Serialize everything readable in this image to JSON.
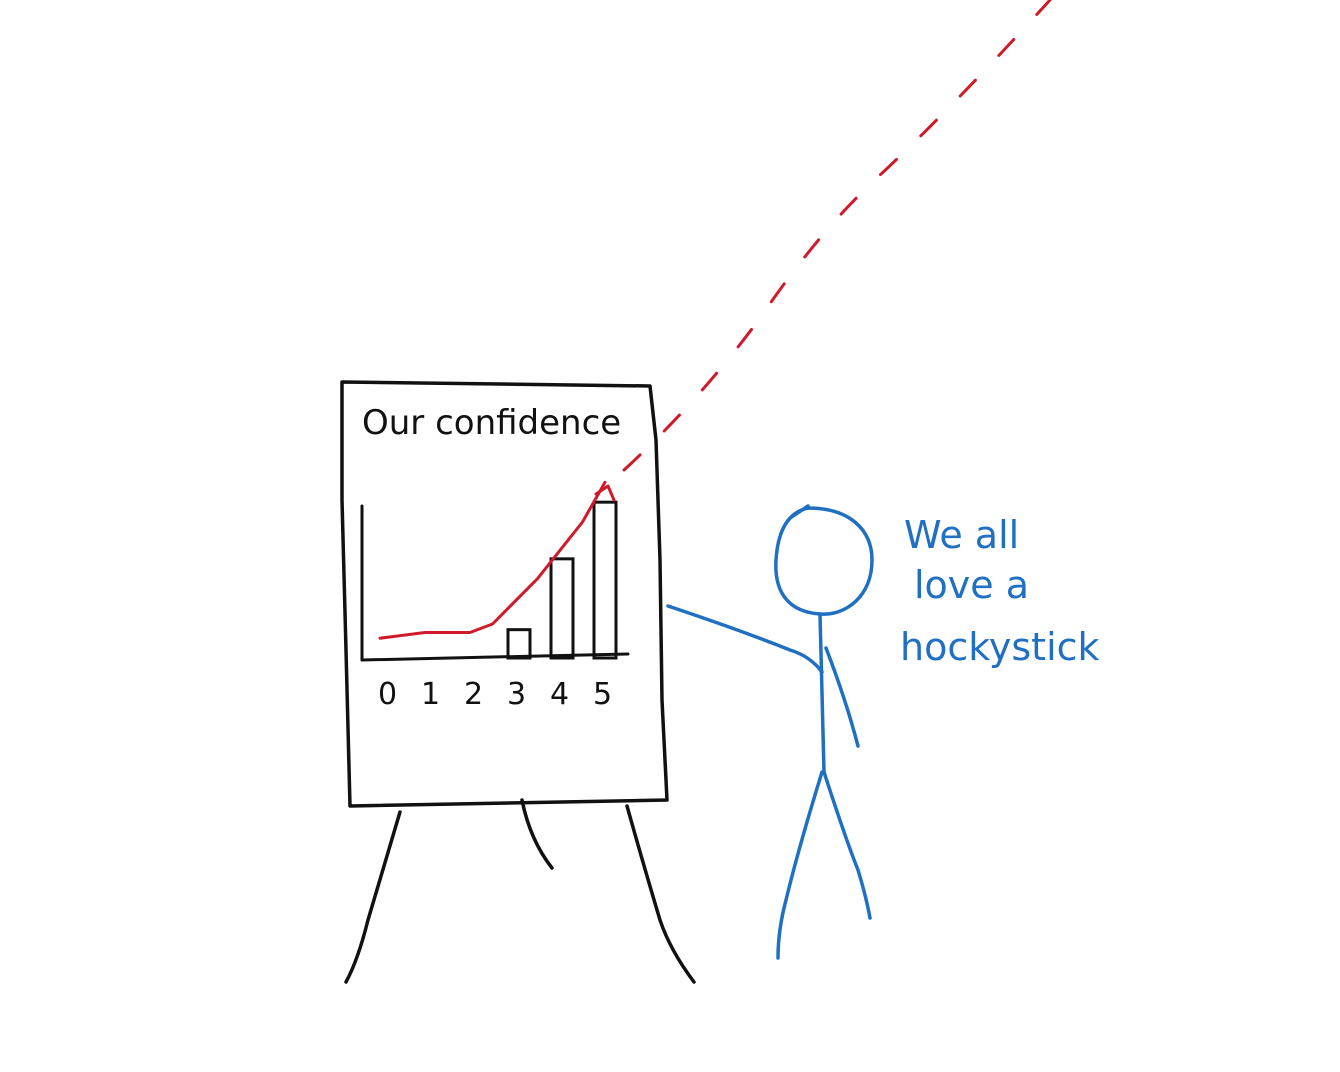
{
  "board": {
    "title": "Our confidence",
    "ticks": [
      "0",
      "1",
      "2",
      "3",
      "4",
      "5"
    ]
  },
  "chart_data": {
    "type": "bar",
    "categories": [
      "0",
      "1",
      "2",
      "3",
      "4",
      "5"
    ],
    "values": [
      0,
      0,
      0,
      1,
      3.5,
      5.5
    ],
    "ylim": [
      0,
      6
    ],
    "trend_line": {
      "x": [
        0,
        1,
        2,
        2.5,
        3,
        3.5,
        4,
        4.5,
        5
      ],
      "y": [
        0.7,
        0.9,
        0.9,
        1.2,
        2.0,
        2.8,
        3.8,
        4.8,
        6.2
      ]
    }
  },
  "speech": {
    "line1": "We all",
    "line2": "love a",
    "line3": "hockystick"
  },
  "colors": {
    "ink": "#111111",
    "trend": "#d01a2a",
    "person": "#1f6fc2"
  }
}
